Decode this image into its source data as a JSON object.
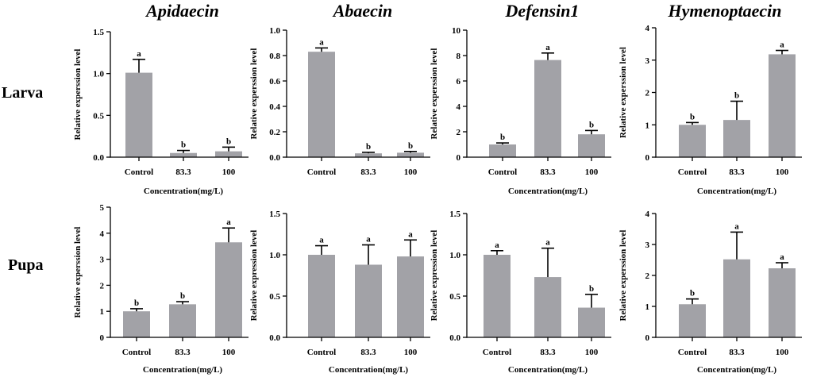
{
  "row_labels": [
    "Larva",
    "Pupa"
  ],
  "chart_data": [
    {
      "type": "bar",
      "title": "Apidaecin",
      "stage": "Larva",
      "categories": [
        "Control",
        "83.3",
        "100"
      ],
      "values": [
        1.01,
        0.05,
        0.07
      ],
      "errors": [
        0.16,
        0.03,
        0.05
      ],
      "significance": [
        "a",
        "b",
        "b"
      ],
      "ylim": [
        0,
        1.5
      ],
      "yticks": [
        0,
        0.5,
        1.0,
        1.5
      ],
      "ytick_labels": [
        "0.0",
        "0.5",
        "1.0",
        "1.5"
      ],
      "xlabel": "Concentration(mg/L)",
      "ylabel": "Relative experssion level"
    },
    {
      "type": "bar",
      "title": "Abaecin",
      "stage": "Larva",
      "categories": [
        "Control",
        "83.3",
        "100"
      ],
      "values": [
        0.83,
        0.03,
        0.035
      ],
      "errors": [
        0.03,
        0.008,
        0.01
      ],
      "significance": [
        "a",
        "b",
        "b"
      ],
      "ylim": [
        0,
        1.0
      ],
      "yticks": [
        0,
        0.2,
        0.4,
        0.6,
        0.8,
        1.0
      ],
      "ytick_labels": [
        "0.0",
        "0.2",
        "0.4",
        "0.6",
        "0.8",
        "1.0"
      ],
      "xlabel": "",
      "ylabel": "Relative experssion level"
    },
    {
      "type": "bar",
      "title": "Defensin1",
      "stage": "Larva",
      "categories": [
        "Control",
        "83.3",
        "100"
      ],
      "values": [
        1.0,
        7.65,
        1.8
      ],
      "errors": [
        0.12,
        0.55,
        0.3
      ],
      "significance": [
        "b",
        "a",
        "b"
      ],
      "ylim": [
        0,
        10
      ],
      "yticks": [
        0,
        2,
        4,
        6,
        8,
        10
      ],
      "ytick_labels": [
        "0",
        "2",
        "4",
        "6",
        "8",
        "10"
      ],
      "xlabel": "Concentration(mg/L)",
      "ylabel": "Relative experssion level"
    },
    {
      "type": "bar",
      "title": "Hymenoptaecin",
      "stage": "Larva",
      "categories": [
        "Control",
        "83.3",
        "100"
      ],
      "values": [
        1.0,
        1.15,
        3.18
      ],
      "errors": [
        0.07,
        0.58,
        0.12
      ],
      "significance": [
        "b",
        "b",
        "a"
      ],
      "ylim": [
        0,
        4
      ],
      "yticks": [
        0,
        1,
        2,
        3,
        4
      ],
      "ytick_labels": [
        "0",
        "1",
        "2",
        "3",
        "4"
      ],
      "xlabel": "Concentration(mg/L)",
      "ylabel": "Relative experssion level"
    },
    {
      "type": "bar",
      "title": "",
      "stage": "Pupa",
      "categories": [
        "Control",
        "83.3",
        "100"
      ],
      "values": [
        1.0,
        1.27,
        3.65
      ],
      "errors": [
        0.1,
        0.1,
        0.55
      ],
      "significance": [
        "b",
        "b",
        "a"
      ],
      "ylim": [
        0,
        5
      ],
      "yticks": [
        0,
        1,
        2,
        3,
        4,
        5
      ],
      "ytick_labels": [
        "0",
        "1",
        "2",
        "3",
        "4",
        "5"
      ],
      "xlabel": "Concentration(mg/L)",
      "ylabel": "Relative experssion level"
    },
    {
      "type": "bar",
      "title": "",
      "stage": "Pupa",
      "categories": [
        "Control",
        "83.3",
        "100"
      ],
      "values": [
        1.0,
        0.88,
        0.98
      ],
      "errors": [
        0.11,
        0.24,
        0.2
      ],
      "significance": [
        "a",
        "a",
        "a"
      ],
      "ylim": [
        0,
        1.5
      ],
      "yticks": [
        0,
        0.5,
        1.0,
        1.5
      ],
      "ytick_labels": [
        "0.0",
        "0.5",
        "1.0",
        "1.5"
      ],
      "xlabel": "Concentration(mg/L)",
      "ylabel": "Relative expression level"
    },
    {
      "type": "bar",
      "title": "",
      "stage": "Pupa",
      "categories": [
        "Control",
        "83.3",
        "100"
      ],
      "values": [
        1.0,
        0.73,
        0.36
      ],
      "errors": [
        0.05,
        0.35,
        0.16
      ],
      "significance": [
        "a",
        "a",
        "b"
      ],
      "ylim": [
        0,
        1.5
      ],
      "yticks": [
        0,
        0.5,
        1.0,
        1.5
      ],
      "ytick_labels": [
        "0.0",
        "0.5",
        "1.0",
        "1.5"
      ],
      "xlabel": "Concentration(mg/L)",
      "ylabel": "Relative expression level"
    },
    {
      "type": "bar",
      "title": "",
      "stage": "Pupa",
      "categories": [
        "Control",
        "83.3",
        "100"
      ],
      "values": [
        1.07,
        2.52,
        2.23
      ],
      "errors": [
        0.17,
        0.88,
        0.18
      ],
      "significance": [
        "b",
        "a",
        "a"
      ],
      "ylim": [
        0,
        4
      ],
      "yticks": [
        0,
        1,
        2,
        3,
        4
      ],
      "ytick_labels": [
        "0",
        "1",
        "2",
        "3",
        "4"
      ],
      "xlabel": "Concentration(mg/L)",
      "ylabel": "Relative experssion level"
    }
  ]
}
